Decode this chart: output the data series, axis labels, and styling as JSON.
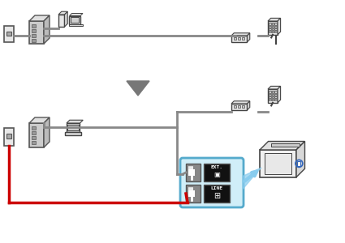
{
  "bg_color": "#ffffff",
  "gray": "#888888",
  "dark_gray": "#555555",
  "light_gray": "#cccccc",
  "lighter_gray": "#e0e0e0",
  "darkest_gray": "#333333",
  "red": "#cc0000",
  "black": "#111111",
  "cyan_edge": "#55aacc",
  "cyan_fill": "#d0eef8",
  "cyan_arrow": "#88ccee",
  "blue_circle": "#3366bb",
  "outline": "#444444"
}
